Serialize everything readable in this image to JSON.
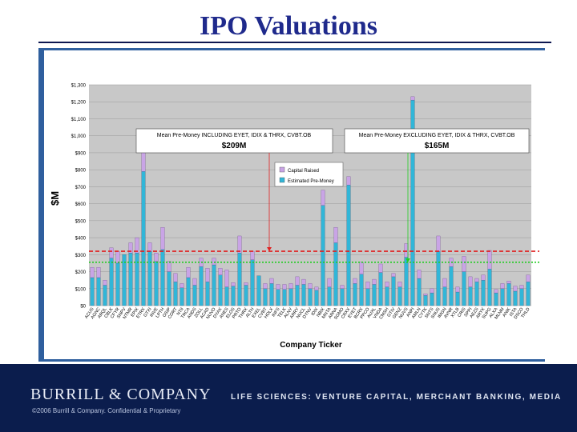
{
  "slide": {
    "title": "IPO Valuations",
    "footer_logo": "BURRILL & COMPANY",
    "footer_tagline": "LIFE SCIENCES: VENTURE CAPITAL, MERCHANT BANKING, MEDIA",
    "footer_copyright": "©2006 Burrill & Company. Confidential & Proprietary"
  },
  "colors": {
    "title": "#1f2a8c",
    "capital_raised": "#c9a4e6",
    "pre_money": "#31b6d8",
    "mean_including": "#e02020",
    "mean_excluding": "#22cc22",
    "plot_bg": "#c8c8c8",
    "footer_bg": "#0b1d4d"
  },
  "chart_data": {
    "type": "bar",
    "stacked": true,
    "xlabel": "Company Ticker",
    "ylabel": "$M",
    "ylim": [
      0,
      1300
    ],
    "yticks": [
      "$0",
      "$100",
      "$200",
      "$300",
      "$400",
      "$500",
      "$600",
      "$700",
      "$800",
      "$900",
      "$1,000",
      "$1,100",
      "$1,200",
      "$1,300"
    ],
    "grid": true,
    "legend_position": "upper-middle",
    "categories": [
      "ACUS",
      "AGNC",
      "ARQL",
      "CBLK",
      "CFYR",
      "SNPV",
      "NTMR",
      "EPIX",
      "ETRX",
      "GTXI",
      "INVE",
      "LPTH",
      "OSIP",
      "CORT",
      "NTII",
      "TRCA",
      "ANDS",
      "ZOLL",
      "ACAD",
      "NUVO",
      "DYAX",
      "ANES",
      "ELOS",
      "PRTO",
      "THRX",
      "ALTH",
      "EXEL",
      "CVBT",
      "HOLX",
      "INFS",
      "TELK",
      "ALNY",
      "ARRY",
      "NUCL",
      "DYNV",
      "IDIX",
      "NBIX",
      "MNTA",
      "ARNA",
      "SGMO",
      "CRXX",
      "EYET",
      "BCRX",
      "PPCO",
      "AUXL",
      "VNDA",
      "CMSH",
      "GTIV",
      "GENZ",
      "NUVS",
      "ANPI",
      "AMLN",
      "CYTK",
      "SNTS",
      "SNUS",
      "IMGN",
      "AVNR",
      "XTLB",
      "CRIS",
      "SPPI",
      "AEZS",
      "ARYX",
      "SUPG",
      "ALXA",
      "MLNM",
      "ANIK",
      "ISTA",
      "DSCO",
      "THLD"
    ],
    "series": [
      {
        "name": "Estimated Pre-Money",
        "values": [
          165,
          165,
          120,
          280,
          250,
          300,
          310,
          310,
          790,
          320,
          260,
          330,
          200,
          140,
          105,
          165,
          120,
          230,
          140,
          240,
          180,
          110,
          115,
          310,
          120,
          270,
          175,
          100,
          130,
          95,
          95,
          100,
          120,
          125,
          100,
          90,
          590,
          110,
          370,
          100,
          710,
          130,
          185,
          100,
          125,
          195,
          110,
          170,
          110,
          285,
          1210,
          160,
          60,
          75,
          320,
          110,
          230,
          80,
          200,
          110,
          140,
          150,
          215,
          75,
          100,
          130,
          85,
          100,
          140
        ]
      },
      {
        "name": "Capital Raised",
        "values": [
          60,
          60,
          30,
          60,
          70,
          0,
          60,
          90,
          140,
          50,
          50,
          130,
          60,
          50,
          25,
          60,
          40,
          50,
          80,
          40,
          40,
          100,
          20,
          100,
          15,
          50,
          0,
          30,
          30,
          30,
          30,
          30,
          50,
          30,
          30,
          20,
          90,
          50,
          90,
          20,
          50,
          30,
          70,
          40,
          30,
          50,
          30,
          20,
          30,
          80,
          20,
          50,
          10,
          25,
          90,
          50,
          50,
          30,
          90,
          60,
          20,
          30,
          110,
          20,
          30,
          15,
          30,
          20,
          40
        ]
      }
    ],
    "reference_lines": [
      {
        "label": "Mean Pre-Money INCLUDING EYET, IDIX & THRX, CVBT.OB",
        "value_label": "$209M",
        "y": 320
      },
      {
        "label": "Mean Pre-Money EXCLUDING EYET, IDIX & THRX, CVBT.OB",
        "value_label": "$165M",
        "y": 255
      }
    ]
  }
}
